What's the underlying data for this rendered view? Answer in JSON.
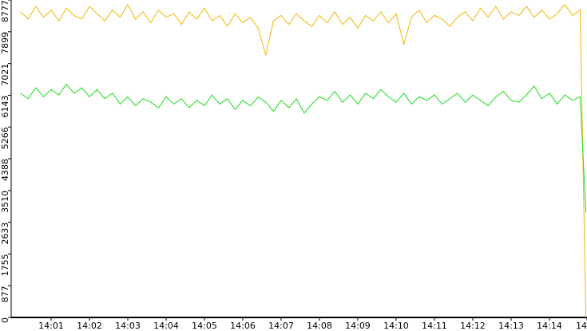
{
  "chart_data": {
    "type": "line",
    "x": [
      0.2,
      0.4,
      0.6,
      0.8,
      1.0,
      1.2,
      1.4,
      1.6,
      1.8,
      2.0,
      2.2,
      2.4,
      2.6,
      2.8,
      3.0,
      3.2,
      3.4,
      3.6,
      3.8,
      4.0,
      4.2,
      4.4,
      4.6,
      4.8,
      5.0,
      5.2,
      5.4,
      5.6,
      5.8,
      6.0,
      6.2,
      6.4,
      6.6,
      6.8,
      7.0,
      7.2,
      7.4,
      7.6,
      7.8,
      8.0,
      8.2,
      8.4,
      8.6,
      8.8,
      9.0,
      9.2,
      9.4,
      9.6,
      9.8,
      10.0,
      10.2,
      10.4,
      10.6,
      10.8,
      11.0,
      11.2,
      11.4,
      11.6,
      11.8,
      12.0,
      12.2,
      12.4,
      12.6,
      12.8,
      13.0,
      13.2,
      13.4,
      13.6,
      13.8,
      14.0,
      14.2,
      14.4,
      14.6,
      14.8,
      14.95
    ],
    "series": [
      {
        "color": "#f2b705",
        "values": [
          8450,
          8250,
          8600,
          8300,
          8500,
          8200,
          8550,
          8350,
          8250,
          8600,
          8400,
          8200,
          8500,
          8300,
          8650,
          8250,
          8450,
          8150,
          8500,
          8300,
          8400,
          8100,
          8450,
          8250,
          8550,
          8200,
          8350,
          8050,
          8400,
          8150,
          8300,
          8000,
          7250,
          8200,
          8350,
          8100,
          8400,
          8200,
          8050,
          8350,
          8150,
          8450,
          8100,
          8300,
          8000,
          8350,
          8200,
          8450,
          8150,
          8400,
          7550,
          8300,
          8500,
          8150,
          8350,
          8250,
          8050,
          8300,
          8450,
          8200,
          8550,
          8300,
          8600,
          8250,
          8450,
          8350,
          8600,
          8300,
          8500,
          8250,
          8400,
          8650,
          8350,
          8500,
          0
        ]
      },
      {
        "color": "#1fdc1f",
        "values": [
          6200,
          6050,
          6350,
          6100,
          6300,
          6150,
          6450,
          6200,
          6350,
          6100,
          6300,
          6050,
          6200,
          5900,
          6100,
          5850,
          6050,
          5950,
          5800,
          6100,
          5900,
          6050,
          5800,
          6000,
          5850,
          6150,
          5900,
          6050,
          5750,
          6000,
          5850,
          6100,
          5950,
          5700,
          6000,
          5800,
          6050,
          5650,
          5900,
          6100,
          6000,
          6250,
          5950,
          6150,
          5900,
          6200,
          6050,
          6300,
          6100,
          5950,
          6200,
          5900,
          6100,
          6000,
          6150,
          5900,
          6050,
          6200,
          5950,
          6150,
          6000,
          5850,
          6100,
          6250,
          6000,
          5950,
          6150,
          6400,
          6050,
          6200,
          5900,
          6150,
          6000,
          6100,
          2900
        ]
      }
    ],
    "xlim": [
      0,
      14.98
    ],
    "xticks": [
      {
        "value": 1,
        "label": "14:01"
      },
      {
        "value": 2,
        "label": "14:02"
      },
      {
        "value": 3,
        "label": "14:03"
      },
      {
        "value": 4,
        "label": "14:04"
      },
      {
        "value": 5,
        "label": "14:05"
      },
      {
        "value": 6,
        "label": "14:06"
      },
      {
        "value": 7,
        "label": "14:07"
      },
      {
        "value": 8,
        "label": "14:08"
      },
      {
        "value": 9,
        "label": "14:09"
      },
      {
        "value": 10,
        "label": "14:10"
      },
      {
        "value": 11,
        "label": "14:11"
      },
      {
        "value": 12,
        "label": "14:12"
      },
      {
        "value": 13,
        "label": "14:13"
      },
      {
        "value": 14,
        "label": "14:14"
      },
      {
        "value": 14.98,
        "label": "14"
      }
    ],
    "ylim": [
      0,
      8777
    ],
    "yticks": [
      0,
      877,
      1755,
      2633,
      3510,
      4388,
      5266,
      6143,
      7021,
      7899,
      8777
    ]
  }
}
